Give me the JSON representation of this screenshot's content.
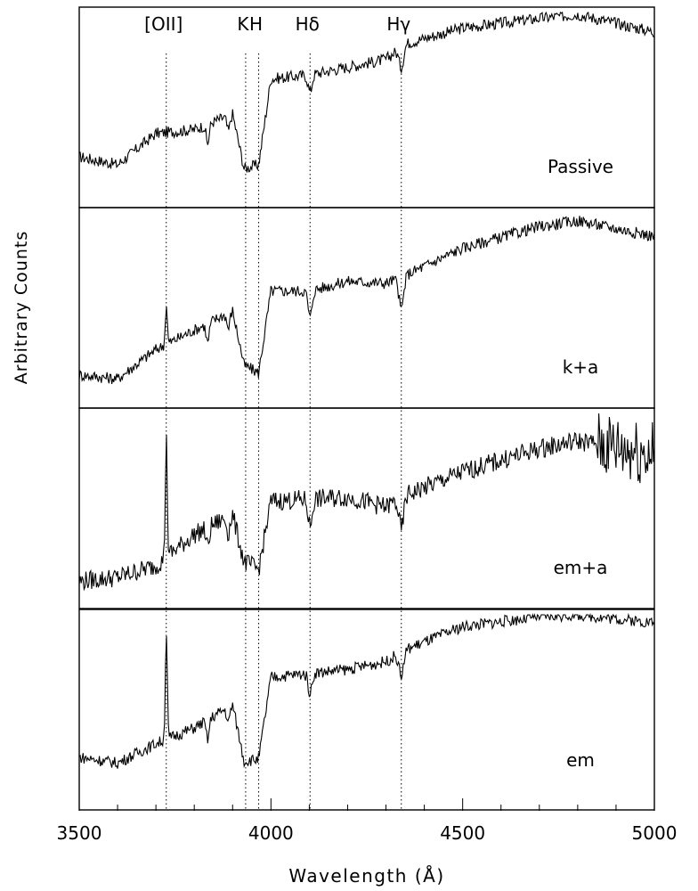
{
  "chart_data": {
    "type": "line",
    "xlabel": "Wavelength (Å)",
    "ylabel": "Arbitrary Counts",
    "xlim": [
      3500,
      5000
    ],
    "x_ticks": [
      3500,
      4000,
      4500,
      5000
    ],
    "x_tick_labels": [
      "3500",
      "4000",
      "4500",
      "5000"
    ],
    "y_ticks_labeled": false,
    "stacked_panels": true,
    "line_markers": [
      {
        "label": "[OII]",
        "wavelength": 3727
      },
      {
        "label": "K",
        "wavelength": 3934
      },
      {
        "label": "H",
        "wavelength": 3968
      },
      {
        "label": "Hδ",
        "wavelength": 4102
      },
      {
        "label": "Hγ",
        "wavelength": 4340
      }
    ],
    "series": [
      {
        "name": "Passive",
        "emission_OII": 0.0,
        "balmer_depth": 0.35,
        "points": [
          [
            3500,
            0.26
          ],
          [
            3600,
            0.22
          ],
          [
            3700,
            0.38
          ],
          [
            3800,
            0.4
          ],
          [
            3900,
            0.48
          ],
          [
            3930,
            0.2
          ],
          [
            3968,
            0.22
          ],
          [
            4000,
            0.66
          ],
          [
            4100,
            0.68
          ],
          [
            4200,
            0.72
          ],
          [
            4300,
            0.76
          ],
          [
            4350,
            0.84
          ],
          [
            4500,
            0.92
          ],
          [
            4700,
            0.97
          ],
          [
            4800,
            0.99
          ],
          [
            5000,
            0.9
          ]
        ]
      },
      {
        "name": "k+a",
        "emission_OII": 0.2,
        "balmer_depth": 0.55,
        "points": [
          [
            3500,
            0.17
          ],
          [
            3600,
            0.15
          ],
          [
            3700,
            0.3
          ],
          [
            3800,
            0.4
          ],
          [
            3900,
            0.5
          ],
          [
            3930,
            0.22
          ],
          [
            3968,
            0.18
          ],
          [
            4000,
            0.6
          ],
          [
            4100,
            0.6
          ],
          [
            4200,
            0.65
          ],
          [
            4300,
            0.64
          ],
          [
            4350,
            0.68
          ],
          [
            4500,
            0.82
          ],
          [
            4700,
            0.93
          ],
          [
            4800,
            0.96
          ],
          [
            5000,
            0.88
          ]
        ]
      },
      {
        "name": "em+a",
        "emission_OII": 0.6,
        "balmer_depth": 0.55,
        "points": [
          [
            3500,
            0.14
          ],
          [
            3600,
            0.16
          ],
          [
            3700,
            0.22
          ],
          [
            3800,
            0.38
          ],
          [
            3900,
            0.48
          ],
          [
            3930,
            0.24
          ],
          [
            3968,
            0.2
          ],
          [
            4000,
            0.55
          ],
          [
            4100,
            0.56
          ],
          [
            4200,
            0.57
          ],
          [
            4300,
            0.52
          ],
          [
            4350,
            0.58
          ],
          [
            4500,
            0.7
          ],
          [
            4700,
            0.82
          ],
          [
            4800,
            0.86
          ],
          [
            5000,
            0.8
          ]
        ]
      },
      {
        "name": "em",
        "emission_OII": 0.55,
        "balmer_depth": 0.4,
        "points": [
          [
            3500,
            0.27
          ],
          [
            3600,
            0.24
          ],
          [
            3700,
            0.34
          ],
          [
            3800,
            0.42
          ],
          [
            3900,
            0.54
          ],
          [
            3930,
            0.25
          ],
          [
            3968,
            0.26
          ],
          [
            4000,
            0.68
          ],
          [
            4100,
            0.7
          ],
          [
            4200,
            0.72
          ],
          [
            4300,
            0.76
          ],
          [
            4350,
            0.82
          ],
          [
            4500,
            0.94
          ],
          [
            4700,
            0.99
          ],
          [
            4800,
            1.0
          ],
          [
            5000,
            0.96
          ]
        ]
      }
    ]
  }
}
